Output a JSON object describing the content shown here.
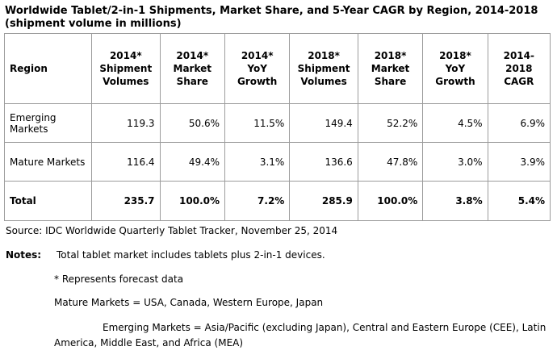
{
  "title": "Worldwide Tablet/2-in-1 Shipments, Market Share, and 5-Year CAGR by Region, 2014-2018 (shipment volume in millions)",
  "table": {
    "headers": [
      "Region",
      "2014* Shipment Volumes",
      "2014* Market Share",
      "2014* YoY Growth",
      "2018* Shipment Volumes",
      "2018* Market Share",
      "2018* YoY Growth",
      "2014-2018 CAGR"
    ],
    "rows": [
      [
        "Emerging Markets",
        "119.3",
        "50.6%",
        "11.5%",
        "149.4",
        "52.2%",
        "4.5%",
        "6.9%"
      ],
      [
        "Mature Markets",
        "116.4",
        "49.4%",
        "3.1%",
        "136.6",
        "47.8%",
        "3.0%",
        "3.9%"
      ],
      [
        "Total",
        "235.7",
        "100.0%",
        "7.2%",
        "285.9",
        "100.0%",
        "3.8%",
        "5.4%"
      ]
    ]
  },
  "source": "Source: IDC Worldwide Quarterly Tablet Tracker, November 25, 2014",
  "notes": {
    "label": "Notes:",
    "items": [
      "Total tablet market includes tablets plus 2-in-1 devices.",
      "* Represents forecast data",
      "Mature Markets = USA, Canada, Western Europe, Japan",
      "Emerging Markets = Asia/Pacific (excluding Japan), Central and Eastern Europe (CEE), Latin America, Middle East, and Africa (MEA)"
    ]
  }
}
